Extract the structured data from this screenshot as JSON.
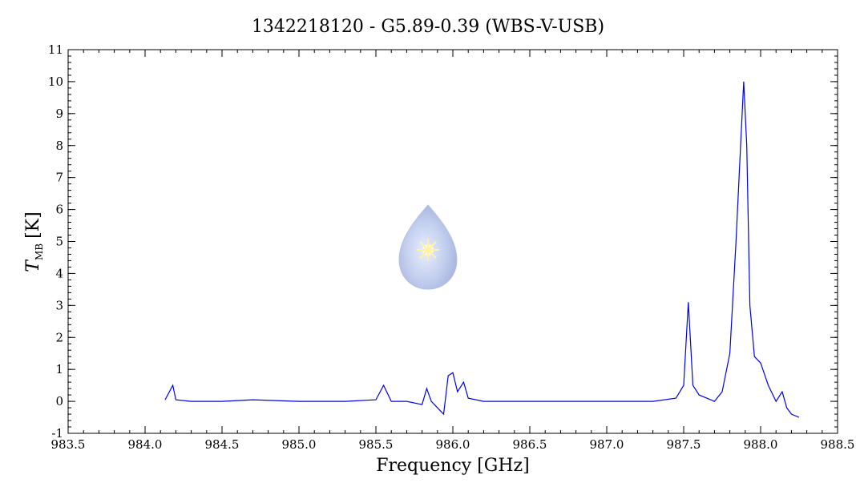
{
  "chart_data": {
    "type": "line",
    "title": "1342218120 - G5.89-0.39 (WBS-V-USB)",
    "xlabel": "Frequency [GHz]",
    "ylabel_main": "T",
    "ylabel_sub": "MB",
    "ylabel_unit": "[K]",
    "xlim": [
      983.5,
      988.5
    ],
    "ylim": [
      -1,
      11
    ],
    "xticks": [
      983.5,
      984.0,
      984.5,
      985.0,
      985.5,
      986.0,
      986.5,
      987.0,
      987.5,
      988.0,
      988.5
    ],
    "xtick_labels": [
      "983.5",
      "984.0",
      "984.5",
      "985.0",
      "985.5",
      "986.0",
      "986.5",
      "987.0",
      "987.5",
      "988.0",
      "988.5"
    ],
    "yticks": [
      -1,
      0,
      1,
      2,
      3,
      4,
      5,
      6,
      7,
      8,
      9,
      10,
      11
    ],
    "ytick_labels": [
      "-1",
      "0",
      "1",
      "2",
      "3",
      "4",
      "5",
      "6",
      "7",
      "8",
      "9",
      "10",
      "11"
    ],
    "series_color": "#0000ee",
    "series": [
      {
        "x": [
          984.13,
          984.18,
          984.2,
          984.3,
          984.5,
          984.7,
          985.0,
          985.3,
          985.5,
          985.55,
          985.6,
          985.7,
          985.8,
          985.83,
          985.86,
          985.9,
          985.94,
          985.97,
          986.0,
          986.03,
          986.07,
          986.1,
          986.2,
          986.5,
          987.0,
          987.3,
          987.45,
          987.5,
          987.53,
          987.56,
          987.6,
          987.65,
          987.7,
          987.75,
          987.8,
          987.84,
          987.87,
          987.89,
          987.91,
          987.93,
          987.96,
          988.0,
          988.05,
          988.1,
          988.14,
          988.17,
          988.2,
          988.25
        ],
        "y": [
          0.05,
          0.5,
          0.05,
          0.0,
          0.0,
          0.05,
          0.0,
          0.0,
          0.05,
          0.5,
          0.0,
          0.0,
          -0.1,
          0.4,
          0.0,
          -0.2,
          -0.4,
          0.8,
          0.9,
          0.3,
          0.6,
          0.1,
          0.0,
          0.0,
          0.0,
          0.0,
          0.1,
          0.5,
          3.1,
          0.5,
          0.2,
          0.1,
          0.0,
          0.3,
          1.5,
          5.0,
          8.0,
          10.0,
          8.0,
          3.0,
          1.4,
          1.2,
          0.5,
          0.0,
          0.3,
          -0.2,
          -0.4,
          -0.5
        ]
      }
    ]
  }
}
